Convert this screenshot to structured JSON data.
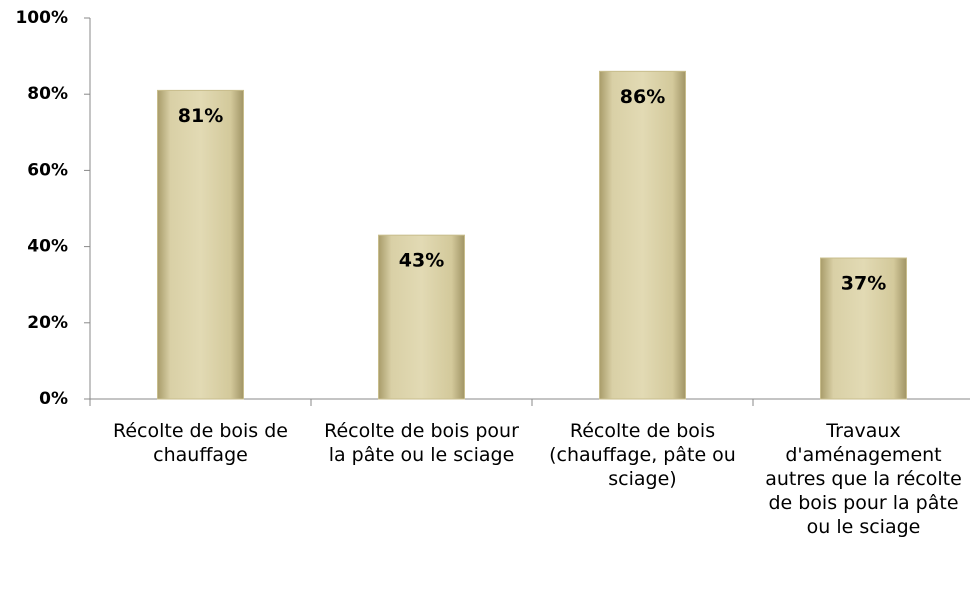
{
  "chart_data": {
    "type": "bar",
    "categories": [
      "Récolte de bois de chauffage",
      "Récolte de bois pour la pâte ou le sciage",
      "Récolte de bois (chauffage, pâte ou sciage)",
      "Travaux d'aménagement autres que la récolte de bois pour la pâte ou le sciage"
    ],
    "values": [
      81,
      43,
      86,
      37
    ],
    "value_labels": [
      "81%",
      "43%",
      "86%",
      "37%"
    ],
    "color": "#d3c99b",
    "ylim": [
      0,
      100
    ],
    "yticks": [
      {
        "value": 0,
        "label": "0%"
      },
      {
        "value": 20,
        "label": "20%"
      },
      {
        "value": 40,
        "label": "40%"
      },
      {
        "value": 60,
        "label": "60%"
      },
      {
        "value": 80,
        "label": "80%"
      },
      {
        "value": 100,
        "label": "100%"
      }
    ],
    "grid": false
  }
}
